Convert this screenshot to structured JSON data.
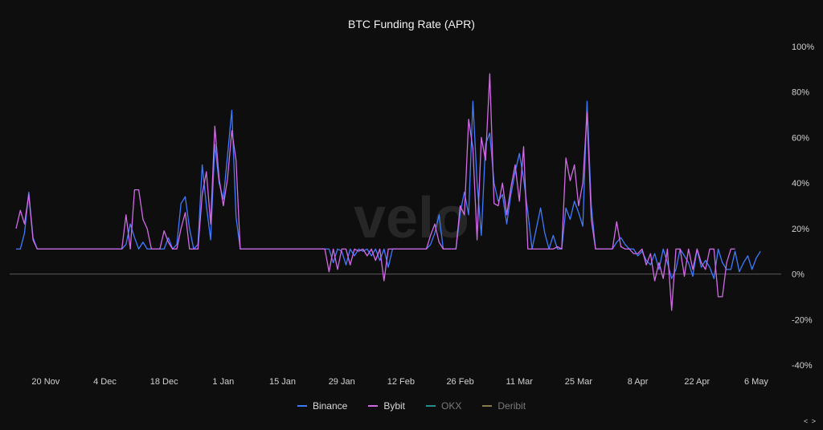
{
  "chart_data": {
    "type": "line",
    "title": "BTC Funding Rate (APR)",
    "watermark": "velo",
    "y_axis": {
      "ticks": [
        "100%",
        "80%",
        "60%",
        "40%",
        "20%",
        "0%",
        "-20%",
        "-40%"
      ],
      "tick_values": [
        100,
        80,
        60,
        40,
        20,
        0,
        -20,
        -40
      ],
      "range": [
        -40,
        100
      ],
      "position": "right"
    },
    "x_axis": {
      "ticks": [
        "20 Nov",
        "4 Dec",
        "18 Dec",
        "1 Jan",
        "15 Jan",
        "29 Jan",
        "12 Feb",
        "26 Feb",
        "11 Mar",
        "25 Mar",
        "8 Apr",
        "22 Apr",
        "6 May"
      ],
      "range": [
        "2023-11-13",
        "2024-05-10"
      ]
    },
    "zero_line": true,
    "legend_position": "bottom-center",
    "series": [
      {
        "name": "Binance",
        "color": "#3d7bff",
        "visible": true,
        "points": [
          [
            "2023-11-13",
            11
          ],
          [
            "2023-11-14",
            11
          ],
          [
            "2023-11-15",
            18
          ],
          [
            "2023-11-16",
            36
          ],
          [
            "2023-11-17",
            16
          ],
          [
            "2023-11-18",
            11
          ],
          [
            "2023-12-01",
            11
          ],
          [
            "2023-12-08",
            11
          ],
          [
            "2023-12-09",
            13
          ],
          [
            "2023-12-10",
            22
          ],
          [
            "2023-12-11",
            16
          ],
          [
            "2023-12-12",
            11
          ],
          [
            "2023-12-13",
            14
          ],
          [
            "2023-12-14",
            11
          ],
          [
            "2023-12-16",
            11
          ],
          [
            "2023-12-18",
            11
          ],
          [
            "2023-12-19",
            16
          ],
          [
            "2023-12-20",
            11
          ],
          [
            "2023-12-21",
            13
          ],
          [
            "2023-12-22",
            31
          ],
          [
            "2023-12-23",
            34
          ],
          [
            "2023-12-24",
            20
          ],
          [
            "2023-12-25",
            11
          ],
          [
            "2023-12-26",
            13
          ],
          [
            "2023-12-27",
            48
          ],
          [
            "2023-12-28",
            30
          ],
          [
            "2023-12-29",
            15
          ],
          [
            "2023-12-30",
            57
          ],
          [
            "2023-12-31",
            40
          ],
          [
            "2024-01-01",
            33
          ],
          [
            "2024-01-02",
            52
          ],
          [
            "2024-01-03",
            72
          ],
          [
            "2024-01-04",
            25
          ],
          [
            "2024-01-05",
            11
          ],
          [
            "2024-01-25",
            11
          ],
          [
            "2024-01-26",
            11
          ],
          [
            "2024-01-27",
            5
          ],
          [
            "2024-01-28",
            11
          ],
          [
            "2024-01-29",
            10
          ],
          [
            "2024-01-30",
            4
          ],
          [
            "2024-01-31",
            11
          ],
          [
            "2024-02-01",
            8
          ],
          [
            "2024-02-02",
            11
          ],
          [
            "2024-02-03",
            10
          ],
          [
            "2024-02-04",
            11
          ],
          [
            "2024-02-05",
            8
          ],
          [
            "2024-02-06",
            11
          ],
          [
            "2024-02-07",
            6
          ],
          [
            "2024-02-08",
            11
          ],
          [
            "2024-02-09",
            3
          ],
          [
            "2024-02-10",
            11
          ],
          [
            "2024-02-18",
            11
          ],
          [
            "2024-02-19",
            13
          ],
          [
            "2024-02-20",
            18
          ],
          [
            "2024-02-21",
            26
          ],
          [
            "2024-02-22",
            11
          ],
          [
            "2024-02-25",
            11
          ],
          [
            "2024-02-26",
            27
          ],
          [
            "2024-02-27",
            36
          ],
          [
            "2024-02-28",
            26
          ],
          [
            "2024-02-29",
            76
          ],
          [
            "2024-03-01",
            40
          ],
          [
            "2024-03-02",
            17
          ],
          [
            "2024-03-03",
            57
          ],
          [
            "2024-03-04",
            62
          ],
          [
            "2024-03-05",
            40
          ],
          [
            "2024-03-06",
            32
          ],
          [
            "2024-03-07",
            35
          ],
          [
            "2024-03-08",
            22
          ],
          [
            "2024-03-09",
            35
          ],
          [
            "2024-03-10",
            45
          ],
          [
            "2024-03-11",
            53
          ],
          [
            "2024-03-12",
            42
          ],
          [
            "2024-03-13",
            27
          ],
          [
            "2024-03-14",
            11
          ],
          [
            "2024-03-15",
            20
          ],
          [
            "2024-03-16",
            29
          ],
          [
            "2024-03-17",
            18
          ],
          [
            "2024-03-18",
            11
          ],
          [
            "2024-03-19",
            17
          ],
          [
            "2024-03-20",
            11
          ],
          [
            "2024-03-21",
            11
          ],
          [
            "2024-03-22",
            29
          ],
          [
            "2024-03-23",
            24
          ],
          [
            "2024-03-24",
            32
          ],
          [
            "2024-03-25",
            27
          ],
          [
            "2024-03-26",
            21
          ],
          [
            "2024-03-27",
            76
          ],
          [
            "2024-03-28",
            30
          ],
          [
            "2024-03-29",
            11
          ],
          [
            "2024-04-02",
            11
          ],
          [
            "2024-04-03",
            14
          ],
          [
            "2024-04-04",
            16
          ],
          [
            "2024-04-05",
            13
          ],
          [
            "2024-04-06",
            11
          ],
          [
            "2024-04-07",
            11
          ],
          [
            "2024-04-08",
            8
          ],
          [
            "2024-04-09",
            10
          ],
          [
            "2024-04-10",
            6
          ],
          [
            "2024-04-11",
            4
          ],
          [
            "2024-04-12",
            9
          ],
          [
            "2024-04-13",
            2
          ],
          [
            "2024-04-14",
            11
          ],
          [
            "2024-04-15",
            5
          ],
          [
            "2024-04-16",
            -2
          ],
          [
            "2024-04-17",
            2
          ],
          [
            "2024-04-18",
            11
          ],
          [
            "2024-04-19",
            8
          ],
          [
            "2024-04-20",
            5
          ],
          [
            "2024-04-21",
            -1
          ],
          [
            "2024-04-22",
            11
          ],
          [
            "2024-04-23",
            3
          ],
          [
            "2024-04-24",
            6
          ],
          [
            "2024-04-25",
            3
          ],
          [
            "2024-04-26",
            -2
          ],
          [
            "2024-04-27",
            11
          ],
          [
            "2024-04-28",
            5
          ],
          [
            "2024-04-29",
            2
          ],
          [
            "2024-04-30",
            2
          ],
          [
            "2024-05-01",
            10
          ],
          [
            "2024-05-02",
            1
          ],
          [
            "2024-05-03",
            5
          ],
          [
            "2024-05-04",
            8
          ],
          [
            "2024-05-05",
            2
          ],
          [
            "2024-05-06",
            7
          ],
          [
            "2024-05-07",
            10
          ]
        ]
      },
      {
        "name": "Bybit",
        "color": "#d26ae6",
        "visible": true,
        "points": [
          [
            "2023-11-13",
            20
          ],
          [
            "2023-11-14",
            28
          ],
          [
            "2023-11-15",
            22
          ],
          [
            "2023-11-16",
            35
          ],
          [
            "2023-11-17",
            15
          ],
          [
            "2023-11-18",
            11
          ],
          [
            "2023-12-08",
            11
          ],
          [
            "2023-12-09",
            26
          ],
          [
            "2023-12-10",
            11
          ],
          [
            "2023-12-11",
            37
          ],
          [
            "2023-12-12",
            37
          ],
          [
            "2023-12-13",
            24
          ],
          [
            "2023-12-14",
            20
          ],
          [
            "2023-12-15",
            11
          ],
          [
            "2023-12-16",
            11
          ],
          [
            "2023-12-17",
            11
          ],
          [
            "2023-12-18",
            19
          ],
          [
            "2023-12-19",
            14
          ],
          [
            "2023-12-20",
            11
          ],
          [
            "2023-12-21",
            11
          ],
          [
            "2023-12-22",
            20
          ],
          [
            "2023-12-23",
            27
          ],
          [
            "2023-12-24",
            11
          ],
          [
            "2023-12-25",
            11
          ],
          [
            "2023-12-26",
            11
          ],
          [
            "2023-12-27",
            35
          ],
          [
            "2023-12-28",
            45
          ],
          [
            "2023-12-29",
            22
          ],
          [
            "2023-12-30",
            65
          ],
          [
            "2023-12-31",
            42
          ],
          [
            "2024-01-01",
            30
          ],
          [
            "2024-01-02",
            42
          ],
          [
            "2024-01-03",
            63
          ],
          [
            "2024-01-04",
            50
          ],
          [
            "2024-01-05",
            11
          ],
          [
            "2024-01-25",
            11
          ],
          [
            "2024-01-26",
            1
          ],
          [
            "2024-01-27",
            11
          ],
          [
            "2024-01-28",
            2
          ],
          [
            "2024-01-29",
            11
          ],
          [
            "2024-01-30",
            11
          ],
          [
            "2024-01-31",
            4
          ],
          [
            "2024-02-01",
            11
          ],
          [
            "2024-02-02",
            10
          ],
          [
            "2024-02-03",
            11
          ],
          [
            "2024-02-04",
            8
          ],
          [
            "2024-02-05",
            11
          ],
          [
            "2024-02-06",
            6
          ],
          [
            "2024-02-07",
            11
          ],
          [
            "2024-02-08",
            -3
          ],
          [
            "2024-02-09",
            11
          ],
          [
            "2024-02-10",
            11
          ],
          [
            "2024-02-18",
            11
          ],
          [
            "2024-02-19",
            17
          ],
          [
            "2024-02-20",
            22
          ],
          [
            "2024-02-21",
            14
          ],
          [
            "2024-02-22",
            11
          ],
          [
            "2024-02-25",
            11
          ],
          [
            "2024-02-26",
            30
          ],
          [
            "2024-02-27",
            26
          ],
          [
            "2024-02-28",
            68
          ],
          [
            "2024-02-29",
            55
          ],
          [
            "2024-03-01",
            15
          ],
          [
            "2024-03-02",
            60
          ],
          [
            "2024-03-03",
            50
          ],
          [
            "2024-03-04",
            88
          ],
          [
            "2024-03-05",
            31
          ],
          [
            "2024-03-06",
            30
          ],
          [
            "2024-03-07",
            40
          ],
          [
            "2024-03-08",
            26
          ],
          [
            "2024-03-09",
            38
          ],
          [
            "2024-03-10",
            48
          ],
          [
            "2024-03-11",
            32
          ],
          [
            "2024-03-12",
            56
          ],
          [
            "2024-03-13",
            11
          ],
          [
            "2024-03-14",
            11
          ],
          [
            "2024-03-15",
            11
          ],
          [
            "2024-03-16",
            11
          ],
          [
            "2024-03-17",
            11
          ],
          [
            "2024-03-18",
            11
          ],
          [
            "2024-03-19",
            11
          ],
          [
            "2024-03-20",
            12
          ],
          [
            "2024-03-21",
            11
          ],
          [
            "2024-03-22",
            51
          ],
          [
            "2024-03-23",
            41
          ],
          [
            "2024-03-24",
            48
          ],
          [
            "2024-03-25",
            30
          ],
          [
            "2024-03-26",
            40
          ],
          [
            "2024-03-27",
            71
          ],
          [
            "2024-03-28",
            24
          ],
          [
            "2024-03-29",
            11
          ],
          [
            "2024-04-02",
            11
          ],
          [
            "2024-04-03",
            23
          ],
          [
            "2024-04-04",
            12
          ],
          [
            "2024-04-05",
            11
          ],
          [
            "2024-04-06",
            11
          ],
          [
            "2024-04-07",
            9
          ],
          [
            "2024-04-08",
            9
          ],
          [
            "2024-04-09",
            11
          ],
          [
            "2024-04-10",
            4
          ],
          [
            "2024-04-11",
            9
          ],
          [
            "2024-04-12",
            -3
          ],
          [
            "2024-04-13",
            5
          ],
          [
            "2024-04-14",
            -2
          ],
          [
            "2024-04-15",
            11
          ],
          [
            "2024-04-16",
            -16
          ],
          [
            "2024-04-17",
            11
          ],
          [
            "2024-04-18",
            11
          ],
          [
            "2024-04-19",
            -1
          ],
          [
            "2024-04-20",
            11
          ],
          [
            "2024-04-21",
            2
          ],
          [
            "2024-04-22",
            11
          ],
          [
            "2024-04-23",
            5
          ],
          [
            "2024-04-24",
            2
          ],
          [
            "2024-04-25",
            11
          ],
          [
            "2024-04-26",
            11
          ],
          [
            "2024-04-27",
            -10
          ],
          [
            "2024-04-28",
            -10
          ],
          [
            "2024-04-29",
            5
          ],
          [
            "2024-04-30",
            11
          ],
          [
            "2024-05-01",
            11
          ]
        ]
      },
      {
        "name": "OKX",
        "color": "#2a8c8c",
        "visible": false,
        "points": []
      },
      {
        "name": "Deribit",
        "color": "#8a7a4a",
        "visible": false,
        "points": []
      }
    ]
  },
  "corner_control": "< >"
}
